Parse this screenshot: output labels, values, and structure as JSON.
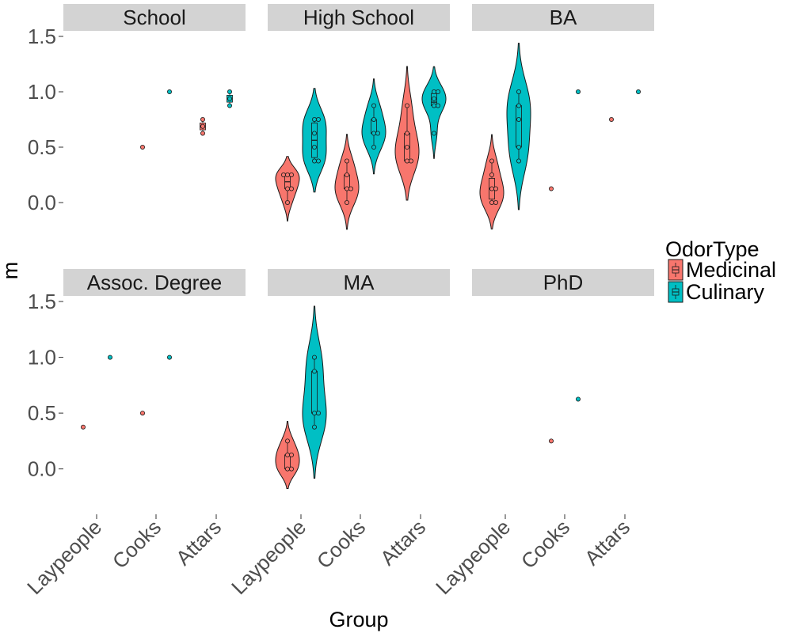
{
  "chart_data": {
    "type": "violin",
    "xlabel": "Group",
    "ylabel": "m",
    "ylim": [
      -0.35,
      1.55
    ],
    "yticks": [
      "0.0",
      "0.5",
      "1.0",
      "1.5"
    ],
    "categories": [
      "Laypeople",
      "Cooks",
      "Attars"
    ],
    "legend": {
      "title": "OdorType",
      "position": "right",
      "entries": [
        {
          "name": "Medicinal",
          "color": "#F8766D"
        },
        {
          "name": "Culinary",
          "color": "#00BFC4"
        }
      ]
    },
    "grid": false,
    "panels": [
      {
        "label": "School",
        "groups": [
          {
            "category": "Cooks",
            "odor": "Medicinal",
            "values": [
              0.5
            ]
          },
          {
            "category": "Cooks",
            "odor": "Culinary",
            "values": [
              1.0
            ]
          },
          {
            "category": "Attars",
            "odor": "Medicinal",
            "values": [
              0.625,
              0.6875,
              0.75
            ]
          },
          {
            "category": "Attars",
            "odor": "Culinary",
            "values": [
              0.875,
              0.9375,
              1.0
            ]
          }
        ]
      },
      {
        "label": "High School",
        "groups": [
          {
            "category": "Laypeople",
            "odor": "Medicinal",
            "values": [
              0.0,
              0.125,
              0.125,
              0.25,
              0.25,
              0.25
            ]
          },
          {
            "category": "Laypeople",
            "odor": "Culinary",
            "values": [
              0.375,
              0.375,
              0.5,
              0.625,
              0.75,
              0.75
            ]
          },
          {
            "category": "Cooks",
            "odor": "Medicinal",
            "values": [
              0.0,
              0.125,
              0.125,
              0.25,
              0.375
            ]
          },
          {
            "category": "Cooks",
            "odor": "Culinary",
            "values": [
              0.5,
              0.625,
              0.625,
              0.75,
              0.875
            ]
          },
          {
            "category": "Attars",
            "odor": "Medicinal",
            "values": [
              0.375,
              0.375,
              0.5,
              0.625,
              0.875
            ]
          },
          {
            "category": "Attars",
            "odor": "Culinary",
            "values": [
              0.625,
              0.875,
              0.875,
              0.9375,
              1.0,
              1.0
            ]
          }
        ]
      },
      {
        "label": "BA",
        "groups": [
          {
            "category": "Laypeople",
            "odor": "Medicinal",
            "values": [
              0.0,
              0.0,
              0.125,
              0.125,
              0.25,
              0.375
            ]
          },
          {
            "category": "Laypeople",
            "odor": "Culinary",
            "values": [
              0.375,
              0.5,
              0.75,
              0.875,
              1.0
            ]
          },
          {
            "category": "Cooks",
            "odor": "Medicinal",
            "values": [
              0.125
            ]
          },
          {
            "category": "Cooks",
            "odor": "Culinary",
            "values": [
              1.0
            ]
          },
          {
            "category": "Attars",
            "odor": "Medicinal",
            "values": [
              0.75
            ]
          },
          {
            "category": "Attars",
            "odor": "Culinary",
            "values": [
              1.0
            ]
          }
        ]
      },
      {
        "label": "Assoc. Degree",
        "groups": [
          {
            "category": "Laypeople",
            "odor": "Medicinal",
            "values": [
              0.375
            ]
          },
          {
            "category": "Laypeople",
            "odor": "Culinary",
            "values": [
              1.0
            ]
          },
          {
            "category": "Cooks",
            "odor": "Medicinal",
            "values": [
              0.5
            ]
          },
          {
            "category": "Cooks",
            "odor": "Culinary",
            "values": [
              1.0
            ]
          }
        ]
      },
      {
        "label": "MA",
        "groups": [
          {
            "category": "Laypeople",
            "odor": "Medicinal",
            "values": [
              0.0,
              0.0,
              0.125,
              0.125,
              0.25
            ]
          },
          {
            "category": "Laypeople",
            "odor": "Culinary",
            "values": [
              0.375,
              0.5,
              0.5,
              0.875,
              1.0
            ]
          }
        ]
      },
      {
        "label": "PhD",
        "groups": [
          {
            "category": "Cooks",
            "odor": "Medicinal",
            "values": [
              0.25
            ]
          },
          {
            "category": "Cooks",
            "odor": "Culinary",
            "values": [
              0.625
            ]
          }
        ]
      }
    ]
  }
}
